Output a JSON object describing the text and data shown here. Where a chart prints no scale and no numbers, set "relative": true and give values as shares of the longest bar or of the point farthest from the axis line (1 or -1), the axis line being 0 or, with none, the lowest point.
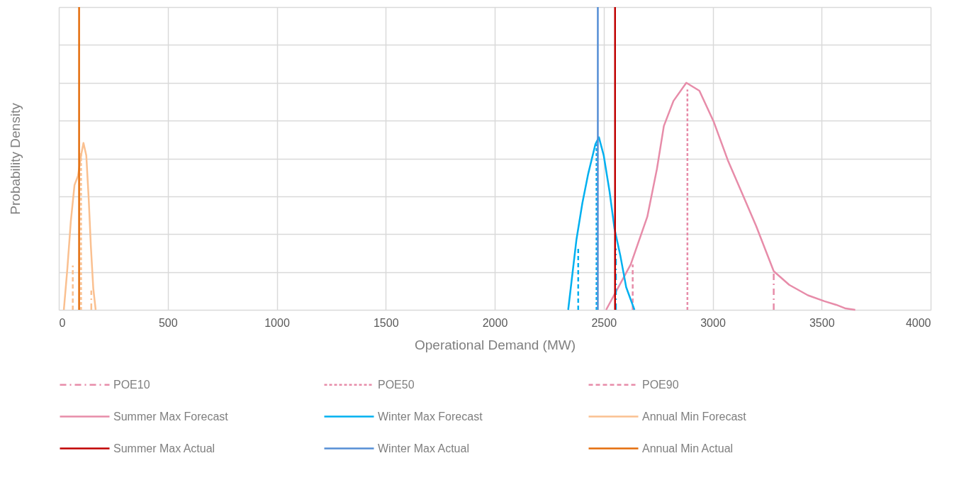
{
  "chart_data": {
    "type": "line",
    "relative": true,
    "xlabel": "Operational Demand (MW)",
    "ylabel": "Probability Density",
    "xlim": [
      0,
      4000
    ],
    "xticks": [
      0,
      500,
      1000,
      1500,
      2000,
      2500,
      3000,
      3500,
      4000
    ],
    "grid": true,
    "legend": "bottom",
    "tick_labels": "x",
    "series": [
      {
        "name": "POE10",
        "color": "#e78ca9",
        "line_style": "dashdot",
        "x": [
          3280,
          3280
        ],
        "values": [
          0,
          0.17
        ]
      },
      {
        "name": "POE50",
        "color": "#e78ca9",
        "line_style": "dotted",
        "x": [
          2884,
          2884
        ],
        "values": [
          0,
          0.97
        ]
      },
      {
        "name": "POE90",
        "color": "#e78ca9",
        "line_style": "dashed",
        "x": [
          2633,
          2633
        ],
        "values": [
          0,
          0.2
        ]
      },
      {
        "name": "Summer Max Forecast",
        "color": "#e78ca9",
        "line_style": "solid",
        "x": [
          2511,
          2624,
          2700,
          2744,
          2776,
          2820,
          2879,
          2939,
          3004,
          3069,
          3134,
          3199,
          3280,
          3351,
          3437,
          3513,
          3567,
          3610,
          3654
        ],
        "values": [
          0,
          0.2,
          0.41,
          0.62,
          0.81,
          0.92,
          1,
          0.965,
          0.83,
          0.66,
          0.515,
          0.37,
          0.17,
          0.11,
          0.064,
          0.038,
          0.022,
          0.006,
          0
        ]
      },
      {
        "name": "Winter Max Forecast",
        "color": "#00b0f0",
        "line_style": "solid",
        "x": [
          2337,
          2375,
          2402,
          2429,
          2462,
          2478,
          2500,
          2527,
          2549,
          2576,
          2603,
          2641
        ],
        "values": [
          0,
          0.31,
          0.47,
          0.6,
          0.73,
          0.76,
          0.68,
          0.52,
          0.36,
          0.24,
          0.1,
          0
        ]
      },
      {
        "name": "Annual Min Forecast",
        "color": "#fac090",
        "line_style": "solid",
        "x": [
          23,
          39,
          55,
          72,
          88,
          104,
          113,
          126,
          137,
          147,
          158,
          169
        ],
        "values": [
          0,
          0.18,
          0.39,
          0.55,
          0.59,
          0.69,
          0.735,
          0.68,
          0.49,
          0.28,
          0.095,
          0
        ]
      },
      {
        "color": "#00b0f0",
        "line_style": "dashdot",
        "x": [
          2556,
          2556
        ],
        "values": [
          0,
          0.27
        ]
      },
      {
        "color": "#00b0f0",
        "line_style": "dotted",
        "x": [
          2467,
          2467
        ],
        "values": [
          0,
          0.73
        ]
      },
      {
        "color": "#00b0f0",
        "line_style": "dashed",
        "x": [
          2383,
          2383
        ],
        "values": [
          0,
          0.27
        ]
      },
      {
        "color": "#fac090",
        "line_style": "dashdot",
        "x": [
          149,
          149
        ],
        "values": [
          0,
          0.085
        ]
      },
      {
        "color": "#fac090",
        "line_style": "dotted",
        "x": [
          102,
          102
        ],
        "values": [
          0,
          0.69
        ]
      },
      {
        "color": "#fac090",
        "line_style": "dashed",
        "x": [
          64,
          64
        ],
        "values": [
          0,
          0.195
        ]
      }
    ],
    "ref_lines": [
      {
        "axis": "x",
        "value": 2552,
        "label": "Summer Max Actual",
        "color": "#c00000"
      },
      {
        "axis": "x",
        "value": 2473,
        "label": "Winter Max Actual",
        "color": "#558ed5"
      },
      {
        "axis": "x",
        "value": 93,
        "label": "Annual Min Actual",
        "color": "#e46c0a"
      }
    ]
  }
}
